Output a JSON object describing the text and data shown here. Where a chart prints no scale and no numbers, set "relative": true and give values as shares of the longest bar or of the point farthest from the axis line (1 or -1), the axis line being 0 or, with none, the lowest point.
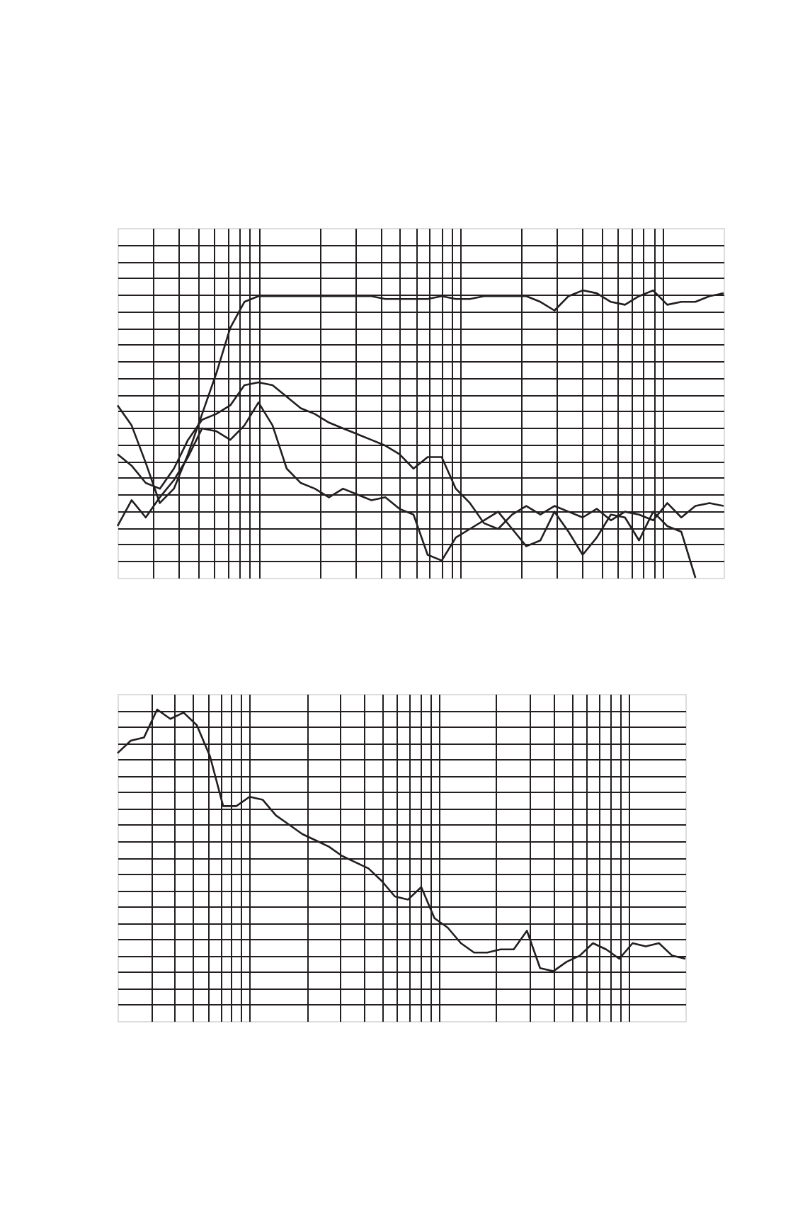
{
  "chart_data": [
    {
      "type": "line",
      "relative": true,
      "grid": true,
      "tick_labels": false,
      "categories": [
        null,
        null,
        null,
        null,
        null,
        null,
        null,
        null,
        null,
        null,
        null,
        null,
        null,
        null,
        null,
        null,
        null,
        null,
        null,
        null,
        null,
        null,
        null,
        null,
        null,
        null,
        null,
        null,
        null,
        null,
        null,
        null,
        null,
        null,
        null,
        null,
        null,
        null,
        null,
        null,
        null,
        null,
        null,
        null
      ],
      "series": [
        {
          "color": "#231f20",
          "values": [
            0.6,
            0.53,
            0.4,
            0.26,
            0.31,
            0.43,
            0.57,
            0.71,
            0.87,
            0.96,
            0.98,
            0.98,
            0.98,
            0.98,
            0.98,
            0.98,
            0.98,
            0.98,
            0.98,
            0.97,
            0.97,
            0.97,
            0.97,
            0.98,
            0.97,
            0.97,
            0.98,
            0.98,
            0.98,
            0.98,
            0.96,
            0.93,
            0.98,
            1.0,
            0.99,
            0.96,
            0.95,
            0.98,
            1.0,
            0.95,
            0.96,
            0.96,
            0.98,
            0.99
          ]
        },
        {
          "color": "#231f20",
          "values": [
            0.43,
            0.39,
            0.33,
            0.31,
            0.38,
            0.48,
            0.55,
            0.57,
            0.6,
            0.67,
            0.68,
            0.67,
            0.63,
            0.59,
            0.57,
            0.54,
            0.52,
            0.5,
            0.48,
            0.46,
            0.43,
            0.38,
            0.42,
            0.42,
            0.31,
            0.26,
            0.19,
            0.17,
            0.22,
            0.25,
            0.22,
            0.25,
            0.23,
            0.21,
            0.24,
            0.2,
            0.23,
            0.22,
            0.2,
            0.26,
            0.21,
            0.25,
            0.26,
            0.25
          ]
        },
        {
          "color": "#231f20",
          "values": [
            0.18,
            0.27,
            0.21,
            0.28,
            0.34,
            0.42,
            0.52,
            0.51,
            0.48,
            0.53,
            0.61,
            0.53,
            0.38,
            0.33,
            0.31,
            0.28,
            0.31,
            0.29,
            0.27,
            0.28,
            0.24,
            0.22,
            0.08,
            0.06,
            0.14,
            0.17,
            0.2,
            0.23,
            0.17,
            0.11,
            0.13,
            0.23,
            0.16,
            0.08,
            0.14,
            0.22,
            0.21,
            0.13,
            0.23,
            0.18,
            0.16,
            0,
            null,
            null
          ]
        }
      ]
    },
    {
      "type": "line",
      "relative": true,
      "grid": true,
      "tick_labels": false,
      "categories": [
        null,
        null,
        null,
        null,
        null,
        null,
        null,
        null,
        null,
        null,
        null,
        null,
        null,
        null,
        null,
        null,
        null,
        null,
        null,
        null,
        null,
        null,
        null,
        null,
        null,
        null,
        null,
        null,
        null,
        null,
        null,
        null,
        null,
        null,
        null,
        null,
        null,
        null,
        null,
        null,
        null,
        null,
        null,
        null
      ],
      "series": [
        {
          "color": "#231f20",
          "values": [
            0.86,
            0.9,
            0.91,
            1.0,
            0.97,
            0.99,
            0.95,
            0.85,
            0.69,
            0.69,
            0.72,
            0.71,
            0.66,
            0.63,
            0.6,
            0.58,
            0.56,
            0.53,
            0.51,
            0.49,
            0.45,
            0.4,
            0.39,
            0.43,
            0.33,
            0.3,
            0.25,
            0.22,
            0.22,
            0.23,
            0.23,
            0.29,
            0.17,
            0.16,
            0.19,
            0.21,
            0.25,
            0.23,
            0.2,
            0.25,
            0.24,
            0.25,
            0.21,
            0.2
          ]
        }
      ]
    }
  ]
}
